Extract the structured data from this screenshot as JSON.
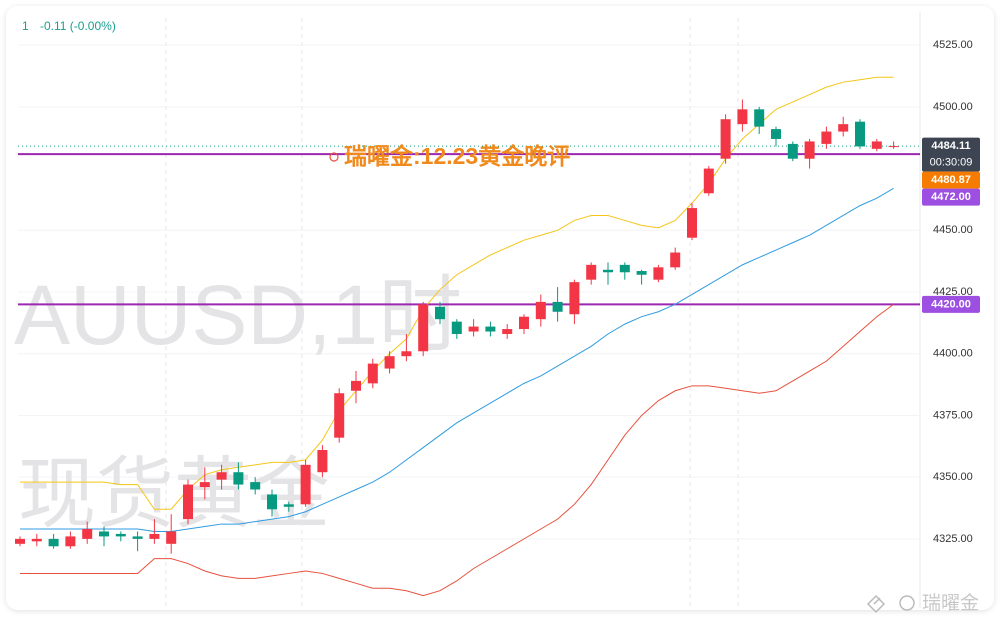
{
  "chart_data": {
    "type": "candlestick",
    "header_prefix": "1",
    "header_change": "-0.11 (-0.00%)",
    "watermark_symbol": "AUUSD,1时",
    "watermark_name": "现货黄金",
    "annotation": "瑞曜金:12.23黄金晚评",
    "brand": "瑞曜金",
    "up_color": "#f23645",
    "down_color": "#089981",
    "ylim": [
      4297,
      4536
    ],
    "yticks": [
      {
        "value": 4325,
        "label": "4325.00"
      },
      {
        "value": 4350,
        "label": "4350.00"
      },
      {
        "value": 4375,
        "label": "4375.00"
      },
      {
        "value": 4400,
        "label": "4400.00"
      },
      {
        "value": 4425,
        "label": "4425.00"
      },
      {
        "value": 4450,
        "label": "4450.00"
      },
      {
        "value": 4500,
        "label": "4500.00"
      },
      {
        "value": 4525,
        "label": "4525.00"
      }
    ],
    "candles": {
      "open": [
        4323,
        4324,
        4325,
        4322,
        4325,
        4328,
        4327,
        4326,
        4325,
        4323,
        4333,
        4346,
        4349,
        4352,
        4348,
        4343,
        4339,
        4339,
        4352,
        4366,
        4385,
        4388,
        4394,
        4399,
        4401,
        4419,
        4413,
        4409,
        4411,
        4408,
        4410,
        4414,
        4421,
        4416,
        4430,
        4434,
        4436,
        4433.5,
        4430,
        4435,
        4447,
        4465,
        4479,
        4493,
        4499,
        4491,
        4485,
        4479,
        4485,
        4490,
        4494,
        4483,
        4484
      ],
      "high": [
        4326,
        4327,
        4327,
        4328,
        4332,
        4330,
        4328,
        4328,
        4333,
        4335,
        4349,
        4354,
        4355,
        4356,
        4350,
        4345,
        4340,
        4357,
        4363,
        4386,
        4393,
        4398,
        4401,
        4408,
        4421,
        4421,
        4414,
        4414,
        4413,
        4412,
        4416,
        4424,
        4427,
        4430,
        4437,
        4437,
        4437,
        4434,
        4436,
        4443,
        4461,
        4476,
        4497,
        4503,
        4500,
        4492,
        4486,
        4487,
        4492,
        4496,
        4495,
        4487,
        4486
      ],
      "low": [
        4322,
        4322,
        4321,
        4321,
        4323,
        4322,
        4324,
        4320,
        4323,
        4319,
        4331,
        4341,
        4345,
        4345,
        4343,
        4334,
        4336,
        4338,
        4350,
        4364,
        4380,
        4386,
        4392,
        4397,
        4399,
        4412,
        4406,
        4407,
        4407,
        4406,
        4408,
        4411,
        4413,
        4412,
        4428,
        4428,
        4430,
        4428,
        4429,
        4434,
        4446,
        4464,
        4477,
        4490,
        4489,
        4484,
        4478,
        4475,
        4483,
        4488,
        4483,
        4482,
        4483
      ],
      "close": [
        4325,
        4325,
        4322,
        4326,
        4329,
        4326,
        4326,
        4325,
        4327,
        4328,
        4347,
        4348,
        4352,
        4347,
        4345,
        4337,
        4338,
        4355,
        4361,
        4384,
        4389,
        4396,
        4399,
        4401,
        4420,
        4414,
        4408,
        4411,
        4409,
        4410,
        4415,
        4421,
        4417,
        4429,
        4436,
        4433,
        4433,
        4432,
        4435,
        4441,
        4459,
        4475,
        4495,
        4499,
        4492,
        4487,
        4479,
        4486,
        4490,
        4493,
        4484,
        4486,
        4484.11
      ]
    },
    "lines": [
      {
        "color": "#f5c518",
        "values": [
          4348,
          4348,
          4348,
          4348,
          4348,
          4348,
          4347,
          4347,
          4337,
          4337,
          4345,
          4351,
          4353,
          4354,
          4355,
          4356,
          4356,
          4357,
          4365,
          4377,
          4385,
          4393,
          4400,
          4406,
          4418,
          4426,
          4432,
          4436,
          4440,
          4443,
          4446,
          4448,
          4450,
          4454,
          4456,
          4456,
          4454,
          4452,
          4451,
          4454,
          4461,
          4469,
          4479,
          4487,
          4493,
          4499,
          4502,
          4505,
          4508,
          4510,
          4511,
          4512,
          4512
        ]
      },
      {
        "color": "#2f9be0",
        "values": [
          4329,
          4329,
          4329,
          4329,
          4329,
          4329,
          4329,
          4329,
          4328,
          4328,
          4329,
          4330,
          4331,
          4331,
          4332,
          4333,
          4334,
          4336,
          4339,
          4342,
          4345,
          4348,
          4352,
          4357,
          4362,
          4367,
          4372,
          4376,
          4380,
          4384,
          4388,
          4391,
          4395,
          4399,
          4403,
          4408,
          4412,
          4415,
          4417,
          4420,
          4424,
          4428,
          4432,
          4436,
          4439,
          4442,
          4445,
          4448,
          4452,
          4456,
          4460,
          4463,
          4467
        ]
      },
      {
        "color": "#e8513d",
        "values": [
          4311,
          4311,
          4311,
          4311,
          4311,
          4311,
          4311,
          4311,
          4317,
          4317,
          4315,
          4312,
          4310,
          4309,
          4309,
          4310,
          4311,
          4312,
          4311,
          4309,
          4307,
          4305,
          4305,
          4304,
          4302,
          4304,
          4308,
          4313,
          4317,
          4321,
          4325,
          4329,
          4333,
          4339,
          4347,
          4357,
          4367,
          4375,
          4381,
          4385,
          4387,
          4387,
          4386,
          4385,
          4384,
          4385,
          4389,
          4393,
          4397,
          4403,
          4409,
          4415,
          4420
        ]
      }
    ],
    "hlines": [
      {
        "value": 4480.87,
        "color": "#9c27b0"
      },
      {
        "value": 4420,
        "color": "#9c27b0"
      }
    ],
    "price_line": {
      "value": 4484.11,
      "color": "#089981"
    },
    "price_labels": [
      {
        "value": 4484.11,
        "label": "4484.11",
        "sub": "00:30:09",
        "color": "#3d4452"
      },
      {
        "value": 4480.87,
        "label": "4480.87",
        "color": "#f57c00"
      },
      {
        "value": 4472,
        "label": "4472.00",
        "color": "#9c4fe0"
      },
      {
        "value": 4420,
        "label": "4420.00",
        "color": "#9c4fe0"
      }
    ]
  }
}
